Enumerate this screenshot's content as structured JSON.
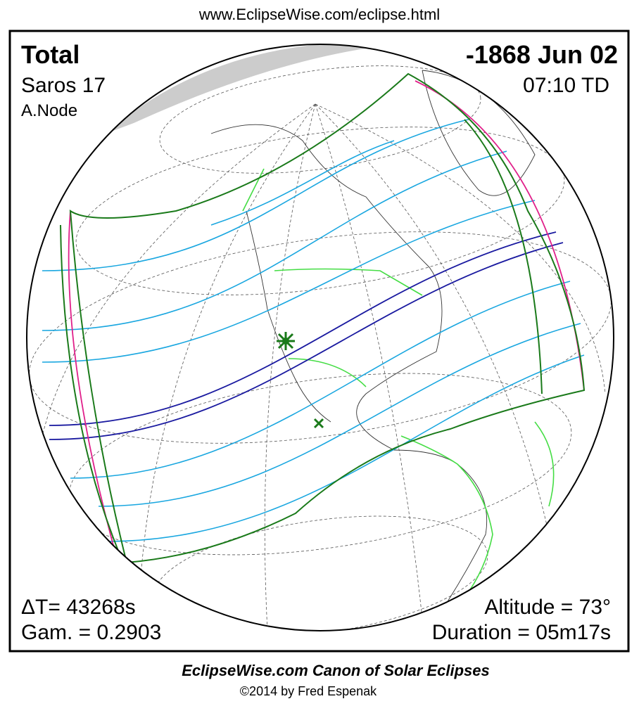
{
  "header": {
    "url": "www.EclipseWise.com/eclipse.html"
  },
  "info": {
    "type": "Total",
    "date": "-1868 Jun 02",
    "saros": "Saros  17",
    "time": "07:10 TD",
    "node": "A.Node",
    "delta_t": "ΔT=  43268s",
    "altitude": "Altitude = 73°",
    "gamma": "Gam. = 0.2903",
    "duration": "Duration = 05m17s"
  },
  "footer": {
    "title": "EclipseWise.com Canon of Solar Eclipses",
    "credit": "©2014 by Fred Espenak"
  }
}
